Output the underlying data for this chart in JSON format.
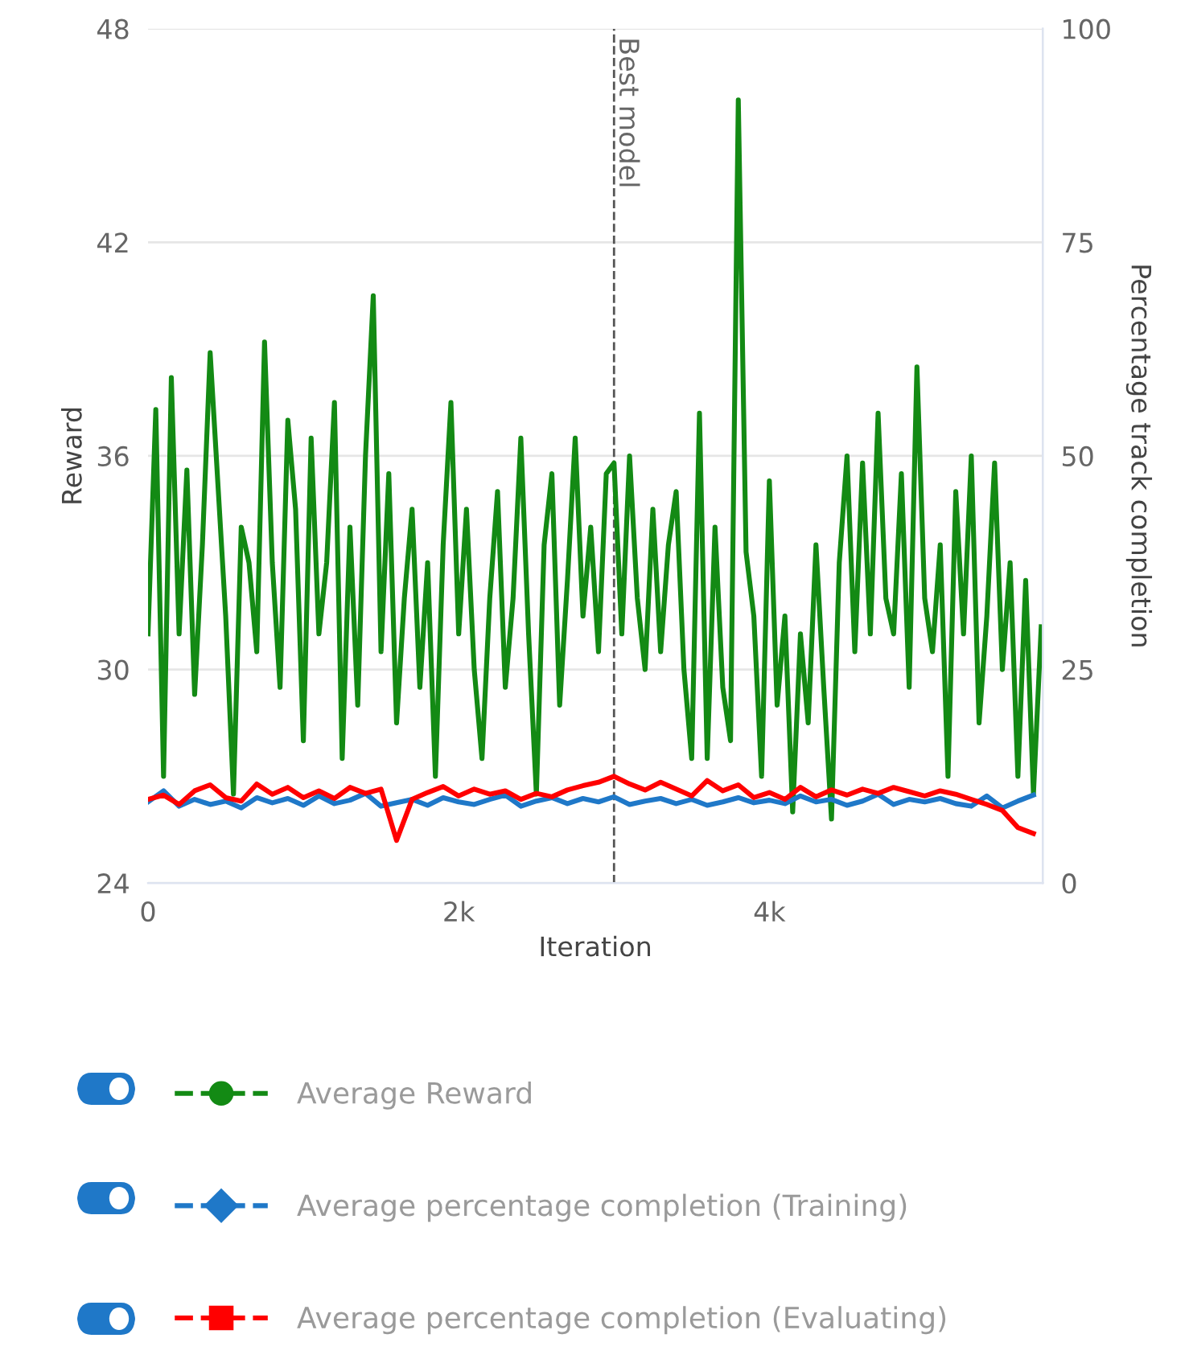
{
  "chart_data": {
    "type": "line",
    "xlabel": "Iteration",
    "ylabel": "Reward",
    "y2label": "Percentage track completion",
    "xlim": [
      0,
      5760
    ],
    "xticks": [
      0,
      {
        "value": 2000,
        "label": "2k"
      },
      {
        "value": 4000,
        "label": "4k"
      }
    ],
    "ylim": [
      24,
      48
    ],
    "yticks": [
      24,
      30,
      36,
      42,
      48
    ],
    "y2lim": [
      0,
      100
    ],
    "y2ticks": [
      0,
      25,
      50,
      75,
      100
    ],
    "grid": "y",
    "legend": "bottom",
    "ref_lines": [
      {
        "axis": "x",
        "value": 3000,
        "label": "Best model",
        "color": "#555555",
        "line_style": "dashed"
      }
    ],
    "series": [
      {
        "name": "Average Reward",
        "color": "#138a14",
        "x": [
          0,
          50,
          100,
          150,
          200,
          250,
          300,
          350,
          400,
          450,
          500,
          550,
          600,
          650,
          700,
          750,
          800,
          850,
          900,
          950,
          1000,
          1050,
          1100,
          1150,
          1200,
          1250,
          1300,
          1350,
          1400,
          1450,
          1500,
          1550,
          1600,
          1650,
          1700,
          1750,
          1800,
          1850,
          1900,
          1950,
          2000,
          2050,
          2100,
          2150,
          2200,
          2250,
          2300,
          2350,
          2400,
          2450,
          2500,
          2550,
          2600,
          2650,
          2700,
          2750,
          2800,
          2850,
          2900,
          2950,
          3000,
          3050,
          3100,
          3150,
          3200,
          3250,
          3300,
          3350,
          3400,
          3450,
          3500,
          3550,
          3600,
          3650,
          3700,
          3750,
          3800,
          3850,
          3900,
          3950,
          4000,
          4050,
          4100,
          4150,
          4200,
          4250,
          4300,
          4350,
          4400,
          4450,
          4500,
          4550,
          4600,
          4650,
          4700,
          4750,
          4800,
          4850,
          4900,
          4950,
          5000,
          5050,
          5100,
          5150,
          5200,
          5250,
          5300,
          5350,
          5400,
          5450,
          5500,
          5550,
          5600,
          5650,
          5700,
          5750
        ],
        "values": [
          31,
          37.3,
          27,
          38.2,
          31,
          35.6,
          29.3,
          33.5,
          38.9,
          35.2,
          31.5,
          26.5,
          34,
          33,
          30.5,
          39.2,
          33,
          29.5,
          37,
          34.5,
          28,
          36.5,
          31,
          33,
          37.5,
          27.5,
          34,
          29,
          36,
          40.5,
          30.5,
          35.5,
          28.5,
          32,
          34.5,
          29.5,
          33,
          27,
          33.5,
          37.5,
          31,
          34.5,
          30,
          27.5,
          32,
          35,
          29.5,
          32,
          36.5,
          31,
          26.5,
          33.5,
          35.5,
          29,
          32.5,
          36.5,
          31.5,
          34,
          30.5,
          35.5,
          35.8,
          31,
          36,
          32,
          30,
          34.5,
          30.5,
          33.5,
          35,
          30,
          27.5,
          37.2,
          27.5,
          34,
          29.5,
          28,
          46,
          33.3,
          31.5,
          27,
          35.3,
          29,
          31.5,
          26,
          31,
          28.5,
          33.5,
          29.5,
          25.8,
          33,
          36,
          30.5,
          35.8,
          31,
          37.2,
          32,
          31,
          35.5,
          29.5,
          38.5,
          32,
          30.5,
          33.5,
          27,
          35,
          31,
          36,
          28.5,
          31.5,
          35.8,
          30,
          33,
          27,
          32.5,
          26.5,
          31.2
        ]
      },
      {
        "name": "Average percentage completion (Training)",
        "color": "#1f78c8",
        "axis": "y2",
        "x": [
          0,
          100,
          200,
          300,
          400,
          500,
          600,
          700,
          800,
          900,
          1000,
          1100,
          1200,
          1300,
          1400,
          1500,
          1600,
          1700,
          1800,
          1900,
          2000,
          2100,
          2200,
          2300,
          2400,
          2500,
          2600,
          2700,
          2800,
          2900,
          3000,
          3100,
          3200,
          3300,
          3400,
          3500,
          3600,
          3700,
          3800,
          3900,
          4000,
          4100,
          4200,
          4300,
          4400,
          4500,
          4600,
          4700,
          4800,
          4900,
          5000,
          5100,
          5200,
          5300,
          5400,
          5500,
          5600,
          5700
        ],
        "values": [
          9.5,
          10.8,
          9,
          9.8,
          9.2,
          9.6,
          8.8,
          10,
          9.4,
          9.9,
          9.1,
          10.2,
          9.3,
          9.7,
          10.5,
          9,
          9.4,
          9.8,
          9.1,
          10,
          9.5,
          9.2,
          9.8,
          10.3,
          9,
          9.6,
          10,
          9.3,
          9.9,
          9.5,
          10.1,
          9.2,
          9.6,
          9.9,
          9.3,
          9.8,
          9.1,
          9.5,
          10,
          9.4,
          9.7,
          9.3,
          10.2,
          9.5,
          9.8,
          9.1,
          9.6,
          10.4,
          9.2,
          9.8,
          9.5,
          9.9,
          9.3,
          9,
          10.2,
          8.8,
          9.6,
          10.3
        ]
      },
      {
        "name": "Average percentage completion (Evaluating)",
        "color": "#ff0000",
        "axis": "y2",
        "x": [
          0,
          100,
          200,
          300,
          400,
          500,
          600,
          700,
          800,
          900,
          1000,
          1100,
          1200,
          1300,
          1400,
          1500,
          1600,
          1700,
          1800,
          1900,
          2000,
          2100,
          2200,
          2300,
          2400,
          2500,
          2600,
          2700,
          2800,
          2900,
          3000,
          3100,
          3200,
          3300,
          3400,
          3500,
          3600,
          3700,
          3800,
          3900,
          4000,
          4100,
          4200,
          4300,
          4400,
          4500,
          4600,
          4700,
          4800,
          4900,
          5000,
          5100,
          5200,
          5300,
          5400,
          5500,
          5600,
          5700
        ],
        "values": [
          9.8,
          10.3,
          9.2,
          10.8,
          11.5,
          10,
          9.6,
          11.6,
          10.4,
          11.2,
          10,
          10.8,
          9.9,
          11.2,
          10.5,
          11,
          5,
          9.8,
          10.6,
          11.3,
          10.2,
          11,
          10.4,
          10.8,
          9.8,
          10.5,
          10.1,
          10.9,
          11.4,
          11.8,
          12.5,
          11.6,
          10.9,
          11.8,
          11,
          10.2,
          12,
          10.8,
          11.5,
          10,
          10.6,
          9.8,
          11.2,
          10.1,
          10.9,
          10.3,
          11,
          10.5,
          11.2,
          10.7,
          10.2,
          10.8,
          10.4,
          9.8,
          9.2,
          8.5,
          6.5,
          5.8
        ]
      }
    ]
  }
}
